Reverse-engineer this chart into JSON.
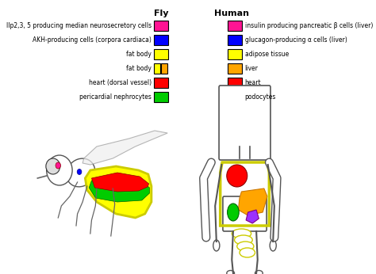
{
  "title_fly": "Fly",
  "title_human": "Human",
  "legend_rows": [
    {
      "fly_label": "Ilp2,3, 5 producing median neurosecretory cells",
      "fly_color": "#FF1493",
      "human_label": "insulin producing pancreatic β cells (liver)",
      "human_color": "#FF1493"
    },
    {
      "fly_label": "AKH-producing cells (corpora cardiaca)",
      "fly_color": "#0000FF",
      "human_label": "glucagon-producing α cells (liver)",
      "human_color": "#0000FF"
    },
    {
      "fly_label": "fat body",
      "fly_color": "#FFFF00",
      "human_label": "adipose tissue",
      "human_color": "#FFFF00"
    },
    {
      "fly_label": "fat body",
      "fly_color": "#FFFF00",
      "fly_color2": "#FFA500",
      "human_label": "liver",
      "human_color": "#FFA500"
    },
    {
      "fly_label": "heart (dorsal vessel)",
      "fly_color": "#FF0000",
      "human_label": "heart",
      "human_color": "#FF0000"
    },
    {
      "fly_label": "pericardial nephrocytes",
      "fly_color": "#00CC00",
      "human_label": "podocytes",
      "human_color": "#00CC00"
    }
  ],
  "background_color": "#FFFFFF"
}
